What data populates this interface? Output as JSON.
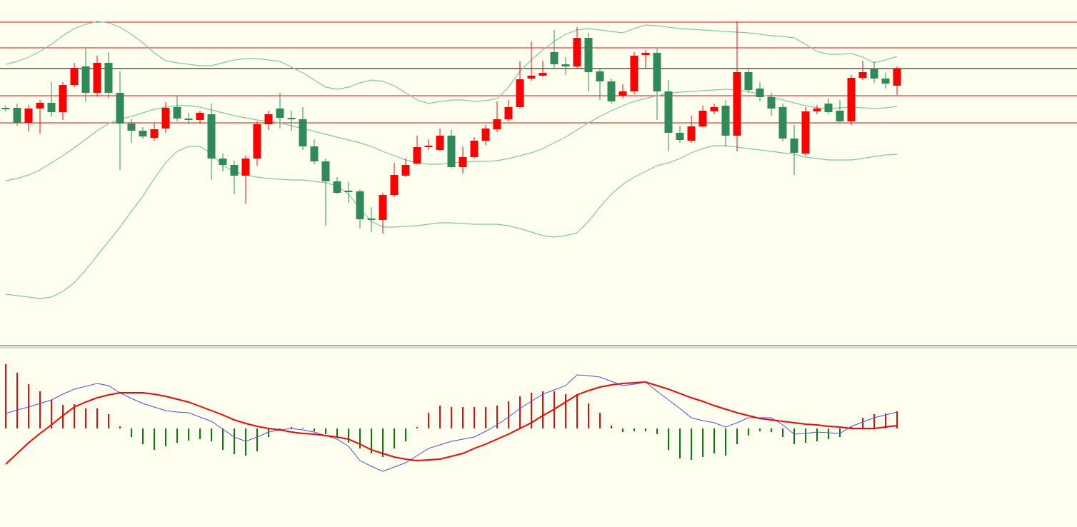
{
  "chart_data": [
    {
      "type": "candlestick",
      "ylim": [
        0,
        484
      ],
      "open": [
        333,
        333,
        312,
        332,
        340,
        327,
        365,
        391,
        354,
        396,
        354,
        311,
        301,
        291,
        304,
        334,
        318,
        316,
        324,
        262,
        253,
        238,
        262,
        310,
        332,
        319,
        317,
        279,
        258,
        230,
        217,
        216,
        178,
        176,
        211,
        238,
        255,
        278,
        274,
        294,
        250,
        264,
        287,
        303,
        317,
        334,
        374,
        378,
        411,
        394,
        391,
        431,
        384,
        370,
        350,
        356,
        407,
        410,
        356,
        298,
        287,
        307,
        328,
        336,
        294,
        383,
        360,
        348,
        334,
        290,
        269,
        328,
        339,
        329,
        314,
        375,
        387,
        374,
        364
      ],
      "high": [
        336,
        339,
        337,
        344,
        369,
        369,
        396,
        416,
        406,
        411,
        384,
        318,
        306,
        312,
        341,
        350,
        326,
        329,
        339,
        269,
        259,
        266,
        314,
        329,
        354,
        329,
        334,
        289,
        262,
        236,
        229,
        219,
        194,
        214,
        256,
        262,
        294,
        289,
        304,
        302,
        279,
        292,
        309,
        342,
        344,
        398,
        426,
        399,
        442,
        404,
        446,
        438,
        388,
        374,
        366,
        411,
        414,
        416,
        372,
        308,
        322,
        336,
        339,
        344,
        454,
        389,
        369,
        354,
        339,
        309,
        334,
        337,
        346,
        344,
        379,
        399,
        398,
        382,
        391
      ],
      "low": [
        328,
        308,
        300,
        297,
        321,
        316,
        362,
        342,
        349,
        346,
        246,
        284,
        290,
        287,
        298,
        314,
        310,
        311,
        232,
        244,
        212,
        199,
        252,
        302,
        304,
        301,
        274,
        254,
        168,
        212,
        200,
        164,
        159,
        157,
        208,
        236,
        254,
        274,
        272,
        248,
        241,
        262,
        281,
        299,
        314,
        332,
        371,
        376,
        389,
        379,
        389,
        356,
        344,
        339,
        347,
        352,
        388,
        316,
        272,
        284,
        284,
        306,
        324,
        279,
        272,
        354,
        342,
        322,
        286,
        239,
        266,
        324,
        324,
        312,
        309,
        372,
        368,
        360,
        351
      ],
      "close": [
        331,
        312,
        332,
        340,
        327,
        365,
        389,
        354,
        396,
        354,
        311,
        301,
        293,
        303,
        333,
        318,
        316,
        326,
        262,
        253,
        238,
        262,
        310,
        324,
        319,
        317,
        279,
        258,
        230,
        214,
        216,
        177,
        176,
        211,
        239,
        253,
        278,
        280,
        294,
        250,
        264,
        287,
        304,
        317,
        334,
        373,
        378,
        382,
        394,
        391,
        431,
        383,
        370,
        342,
        356,
        406,
        410,
        356,
        298,
        288,
        307,
        329,
        334,
        294,
        383,
        358,
        348,
        332,
        290,
        270,
        328,
        332,
        327,
        314,
        375,
        383,
        374,
        367,
        388
      ],
      "up_color": "#ff0000",
      "down_color": "#2e8b57",
      "upper_band": [
        394,
        398,
        404,
        412,
        422,
        434,
        444,
        450,
        454,
        452,
        446,
        436,
        424,
        410,
        399,
        396,
        394,
        392,
        392,
        396,
        400,
        402,
        402,
        400,
        398,
        390,
        382,
        372,
        362,
        359,
        362,
        368,
        372,
        370,
        364,
        354,
        344,
        339,
        342,
        344,
        344,
        342,
        343,
        346,
        362,
        384,
        400,
        414,
        426,
        436,
        442,
        444,
        442,
        440,
        438,
        444,
        449,
        448,
        446,
        444,
        443,
        442,
        441,
        440,
        439,
        438,
        436,
        434,
        433,
        431,
        422,
        412,
        408,
        408,
        409,
        404,
        396,
        400,
        405
      ],
      "middle_band": [
        231,
        234,
        239,
        246,
        256,
        266,
        277,
        289,
        301,
        311,
        317,
        321,
        326,
        331,
        334,
        336,
        336,
        334,
        330,
        326,
        322,
        319,
        316,
        314,
        312,
        308,
        304,
        300,
        296,
        292,
        288,
        284,
        279,
        272,
        266,
        260,
        256,
        254,
        254,
        256,
        257,
        258,
        258,
        259,
        262,
        266,
        270,
        276,
        284,
        292,
        302,
        312,
        321,
        329,
        336,
        342,
        346,
        350,
        353,
        355,
        356,
        357,
        358,
        359,
        358,
        356,
        352,
        348,
        344,
        340,
        336,
        333,
        332,
        333,
        334,
        333,
        332,
        333,
        335
      ],
      "lower_band": [
        72,
        70,
        68,
        66,
        68,
        76,
        88,
        106,
        126,
        146,
        166,
        188,
        209,
        234,
        256,
        272,
        279,
        279,
        269,
        252,
        244,
        239,
        236,
        234,
        233,
        232,
        232,
        230,
        228,
        224,
        212,
        192,
        174,
        166,
        166,
        167,
        168,
        170,
        172,
        172,
        171,
        170,
        170,
        170,
        168,
        164,
        159,
        154,
        152,
        154,
        158,
        174,
        194,
        212,
        226,
        236,
        244,
        252,
        256,
        262,
        270,
        276,
        280,
        280,
        278,
        276,
        274,
        272,
        270,
        268,
        264,
        262,
        260,
        260,
        260,
        262,
        265,
        267,
        268
      ],
      "band_color": "#7ccb9c",
      "levels": [
        453,
        417,
        350,
        312
      ],
      "level_color": "#ff0000",
      "last_price": 388,
      "last_price_color": "#000000"
    },
    {
      "type": "macd",
      "ylim": [
        -138,
        112
      ],
      "histogram": [
        90,
        78,
        62,
        52,
        40,
        33,
        34,
        28,
        28,
        20,
        3,
        -12,
        -22,
        -30,
        -25,
        -20,
        -17,
        -15,
        -18,
        -30,
        -36,
        -38,
        -32,
        -12,
        -2,
        2,
        1,
        -4,
        -8,
        -12,
        -20,
        -28,
        -35,
        -40,
        -28,
        -18,
        2,
        22,
        32,
        30,
        30,
        30,
        30,
        32,
        38,
        45,
        50,
        52,
        52,
        48,
        48,
        35,
        22,
        4,
        -5,
        -4,
        -4,
        -8,
        -30,
        -42,
        -44,
        -40,
        -35,
        -38,
        -22,
        -10,
        -4,
        -5,
        -12,
        -22,
        -20,
        -18,
        -15,
        -12,
        2,
        15,
        20,
        21,
        24
      ],
      "positive_color": "#ff0000",
      "negative_color": "#008000",
      "macd": [
        21,
        26,
        30,
        35,
        40,
        48,
        55,
        59,
        63,
        60,
        50,
        42,
        35,
        30,
        25,
        23,
        22,
        16,
        10,
        -1,
        -12,
        -18,
        -12,
        -5,
        -2,
        0,
        -2,
        -5,
        -10,
        -15,
        -25,
        -45,
        -53,
        -60,
        -54,
        -48,
        -38,
        -28,
        -23,
        -18,
        -15,
        -12,
        -4,
        5,
        16,
        28,
        38,
        48,
        54,
        60,
        75,
        74,
        72,
        66,
        60,
        62,
        65,
        52,
        40,
        28,
        15,
        11,
        8,
        2,
        8,
        15,
        15,
        15,
        5,
        -8,
        -7,
        -5,
        -6,
        -7,
        3,
        9,
        15,
        19,
        23
      ],
      "macd_color": "#4a4aff",
      "signal": [
        -50,
        -35,
        -20,
        -7,
        5,
        18,
        30,
        37,
        43,
        47,
        50,
        50,
        50,
        48,
        45,
        41,
        37,
        31,
        25,
        19,
        12,
        7,
        3,
        0,
        -2,
        -5,
        -7,
        -8,
        -10,
        -12,
        -15,
        -22,
        -30,
        -35,
        -40,
        -43,
        -45,
        -44,
        -43,
        -39,
        -35,
        -28,
        -22,
        -15,
        -8,
        0,
        8,
        18,
        27,
        37,
        47,
        53,
        58,
        61,
        63,
        64,
        65,
        60,
        55,
        49,
        43,
        38,
        32,
        27,
        22,
        18,
        14,
        12,
        10,
        8,
        6,
        5,
        3,
        2,
        0,
        0,
        0,
        2,
        4
      ],
      "signal_color": "#ff0000"
    }
  ]
}
